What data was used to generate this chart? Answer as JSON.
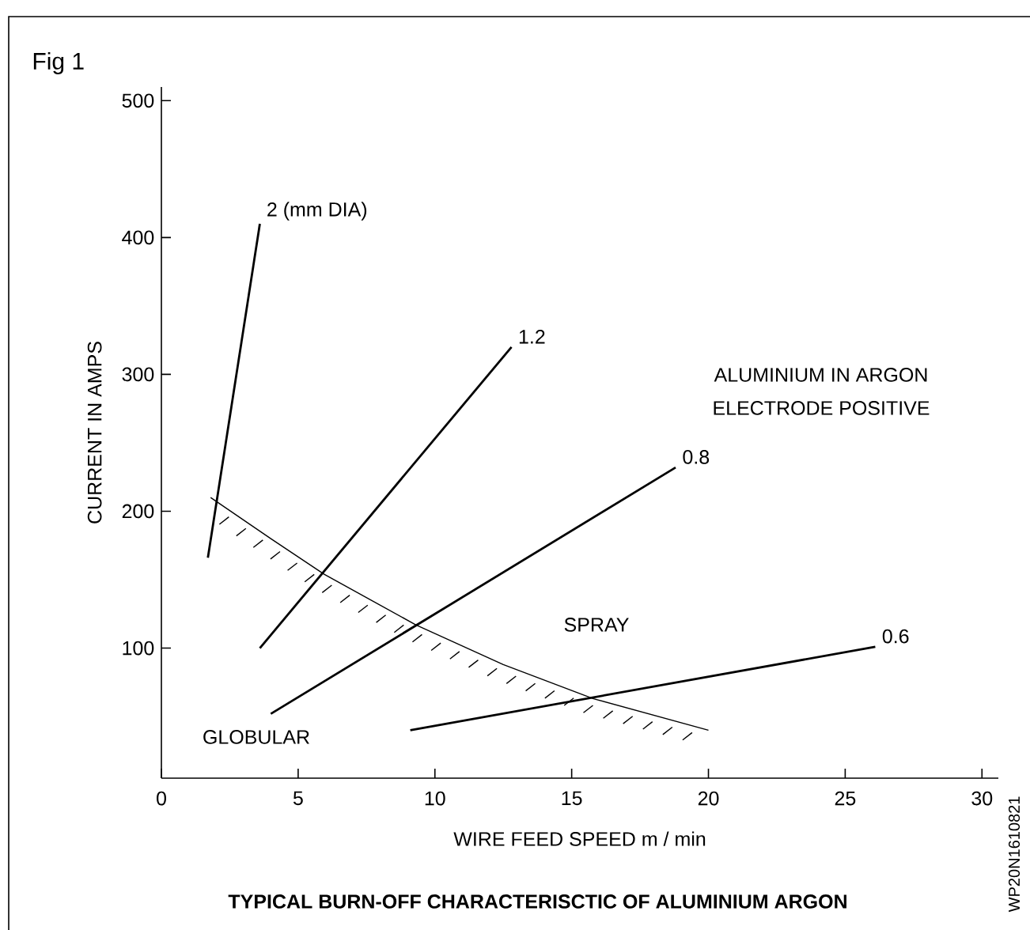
{
  "chart_data": {
    "type": "line",
    "title": "TYPICAL BURN-OFF CHARACTERISCTIC OF ALUMINIUM ARGON",
    "xlabel": "WIRE FEED SPEED  m / min",
    "ylabel": "CURRENT IN AMPS",
    "annotations": [
      "Fig 1",
      "ALUMINIUM IN ARGON",
      "ELECTRODE POSITIVE",
      "SPRAY",
      "GLOBULAR",
      "WP20N1610821"
    ],
    "xlim": [
      0,
      30.6
    ],
    "ylim": [
      5,
      510
    ],
    "xticks": [
      0,
      5,
      10,
      15,
      20,
      25,
      30
    ],
    "yticks": [
      100,
      200,
      300,
      400,
      500
    ],
    "series": [
      {
        "name": "2 (mm DIA)",
        "color": "#000000",
        "x": [
          1.7,
          3.6
        ],
        "values": [
          166,
          410
        ]
      },
      {
        "name": "1.2",
        "color": "#000000",
        "x": [
          3.6,
          12.8
        ],
        "values": [
          100,
          320
        ]
      },
      {
        "name": "0.8",
        "color": "#000000",
        "x": [
          4.0,
          18.8
        ],
        "values": [
          52,
          232
        ]
      },
      {
        "name": "0.6",
        "color": "#000000",
        "x": [
          9.1,
          26.1
        ],
        "values": [
          40,
          101
        ]
      },
      {
        "color": "#000000",
        "x": [
          1.8,
          4,
          5.95,
          9.3,
          12.5,
          15.8,
          20
        ],
        "values": [
          210,
          180,
          154,
          117,
          88,
          63,
          40
        ]
      }
    ]
  }
}
